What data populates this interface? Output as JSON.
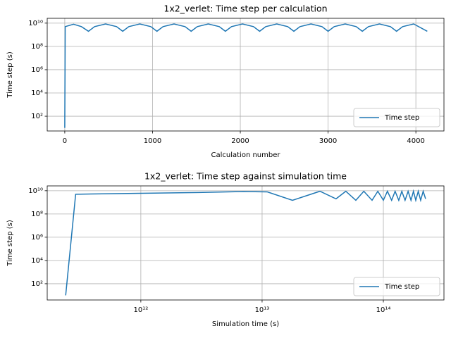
{
  "chart_data": [
    {
      "type": "line",
      "title": "1x2_verlet: Time step per calculation",
      "x_label": "Calculation number",
      "y_label": "Time step (s)",
      "xlim": [
        -200,
        4320
      ],
      "ylim": [
        5.4,
        26000000000.0
      ],
      "yscale": "log",
      "grid": true,
      "legend": "lower right",
      "xticks": [
        0,
        1000,
        2000,
        3000,
        4000
      ],
      "yticks": [
        {
          "value": 100,
          "label": "10²"
        },
        {
          "value": 10000,
          "label": "10⁴"
        },
        {
          "value": 1000000,
          "label": "10⁶"
        },
        {
          "value": 100000000,
          "label": "10⁸"
        },
        {
          "value": 10000000000,
          "label": "10¹⁰"
        }
      ],
      "series": [
        {
          "name": "Time step",
          "color": "#1f77b4",
          "x": [
            0,
            5,
            100,
            190,
            270,
            340,
            465,
            590,
            660,
            730,
            855,
            980,
            1050,
            1120,
            1245,
            1370,
            1440,
            1510,
            1635,
            1760,
            1830,
            1900,
            2025,
            2150,
            2220,
            2290,
            2415,
            2540,
            2610,
            2680,
            2805,
            2930,
            3000,
            3070,
            3195,
            3320,
            3390,
            3460,
            3585,
            3710,
            3780,
            3850,
            3975,
            4130
          ],
          "values": [
            10,
            5000000000.0,
            8000000000.0,
            5000000000.0,
            2000000000.0,
            5000000000.0,
            8500000000.0,
            5000000000.0,
            2000000000.0,
            5000000000.0,
            8500000000.0,
            5000000000.0,
            2000000000.0,
            5000000000.0,
            8500000000.0,
            5000000000.0,
            2000000000.0,
            5000000000.0,
            8500000000.0,
            5000000000.0,
            2000000000.0,
            5000000000.0,
            8500000000.0,
            5000000000.0,
            2000000000.0,
            5000000000.0,
            8500000000.0,
            5000000000.0,
            2000000000.0,
            5000000000.0,
            8500000000.0,
            5000000000.0,
            2000000000.0,
            5000000000.0,
            8500000000.0,
            5000000000.0,
            2000000000.0,
            5000000000.0,
            8500000000.0,
            5000000000.0,
            2000000000.0,
            5000000000.0,
            8500000000.0,
            2000000000.0
          ]
        }
      ]
    },
    {
      "type": "line",
      "title": "1x2_verlet: Time step against simulation time",
      "x_label": "Simulation time (s)",
      "y_label": "Time step (s)",
      "xlim": [
        169000000000.0,
        316000000000000.0
      ],
      "ylim": [
        4,
        26000000000.0
      ],
      "xscale": "log",
      "yscale": "log",
      "grid": true,
      "legend": "lower right",
      "xticks": [
        {
          "value": 1000000000000,
          "label": "10¹²"
        },
        {
          "value": 10000000000000,
          "label": "10¹³"
        },
        {
          "value": 100000000000000,
          "label": "10¹⁴"
        }
      ],
      "yticks": [
        {
          "value": 100,
          "label": "10²"
        },
        {
          "value": 10000,
          "label": "10⁴"
        },
        {
          "value": 1000000,
          "label": "10⁶"
        },
        {
          "value": 100000000,
          "label": "10⁸"
        },
        {
          "value": 10000000000,
          "label": "10¹⁰"
        }
      ],
      "series": [
        {
          "name": "Time step",
          "color": "#1f77b4",
          "x": [
            240000000000.0,
            290000000000.0,
            1000000000000.0,
            3000000000000.0,
            7000000000000.0,
            11000000000000.0,
            17800000000000.0,
            30000000000000.0,
            40700000000000.0,
            49000000000000.0,
            59300000000000.0,
            69000000000000.0,
            80700000000000.0,
            90000000000000.0,
            100000000000000.0,
            108000000000000.0,
            117000000000000.0,
            125000000000000.0,
            134000000000000.0,
            142000000000000.0,
            151000000000000.0,
            160000000000000.0,
            169000000000000.0,
            177000000000000.0,
            185000000000000.0,
            194000000000000.0,
            203000000000000.0,
            213000000000000.0,
            223000000000000.0
          ],
          "values": [
            10,
            5000000000.0,
            6000000000.0,
            7000000000.0,
            8500000000.0,
            8000000000.0,
            1500000000.0,
            9000000000.0,
            2000000000.0,
            9000000000.0,
            1500000000.0,
            9000000000.0,
            1500000000.0,
            9000000000.0,
            1500000000.0,
            9000000000.0,
            1500000000.0,
            9000000000.0,
            1500000000.0,
            9000000000.0,
            1500000000.0,
            9000000000.0,
            1500000000.0,
            9000000000.0,
            1500000000.0,
            9000000000.0,
            1500000000.0,
            9000000000.0,
            2000000000.0
          ]
        }
      ]
    }
  ]
}
